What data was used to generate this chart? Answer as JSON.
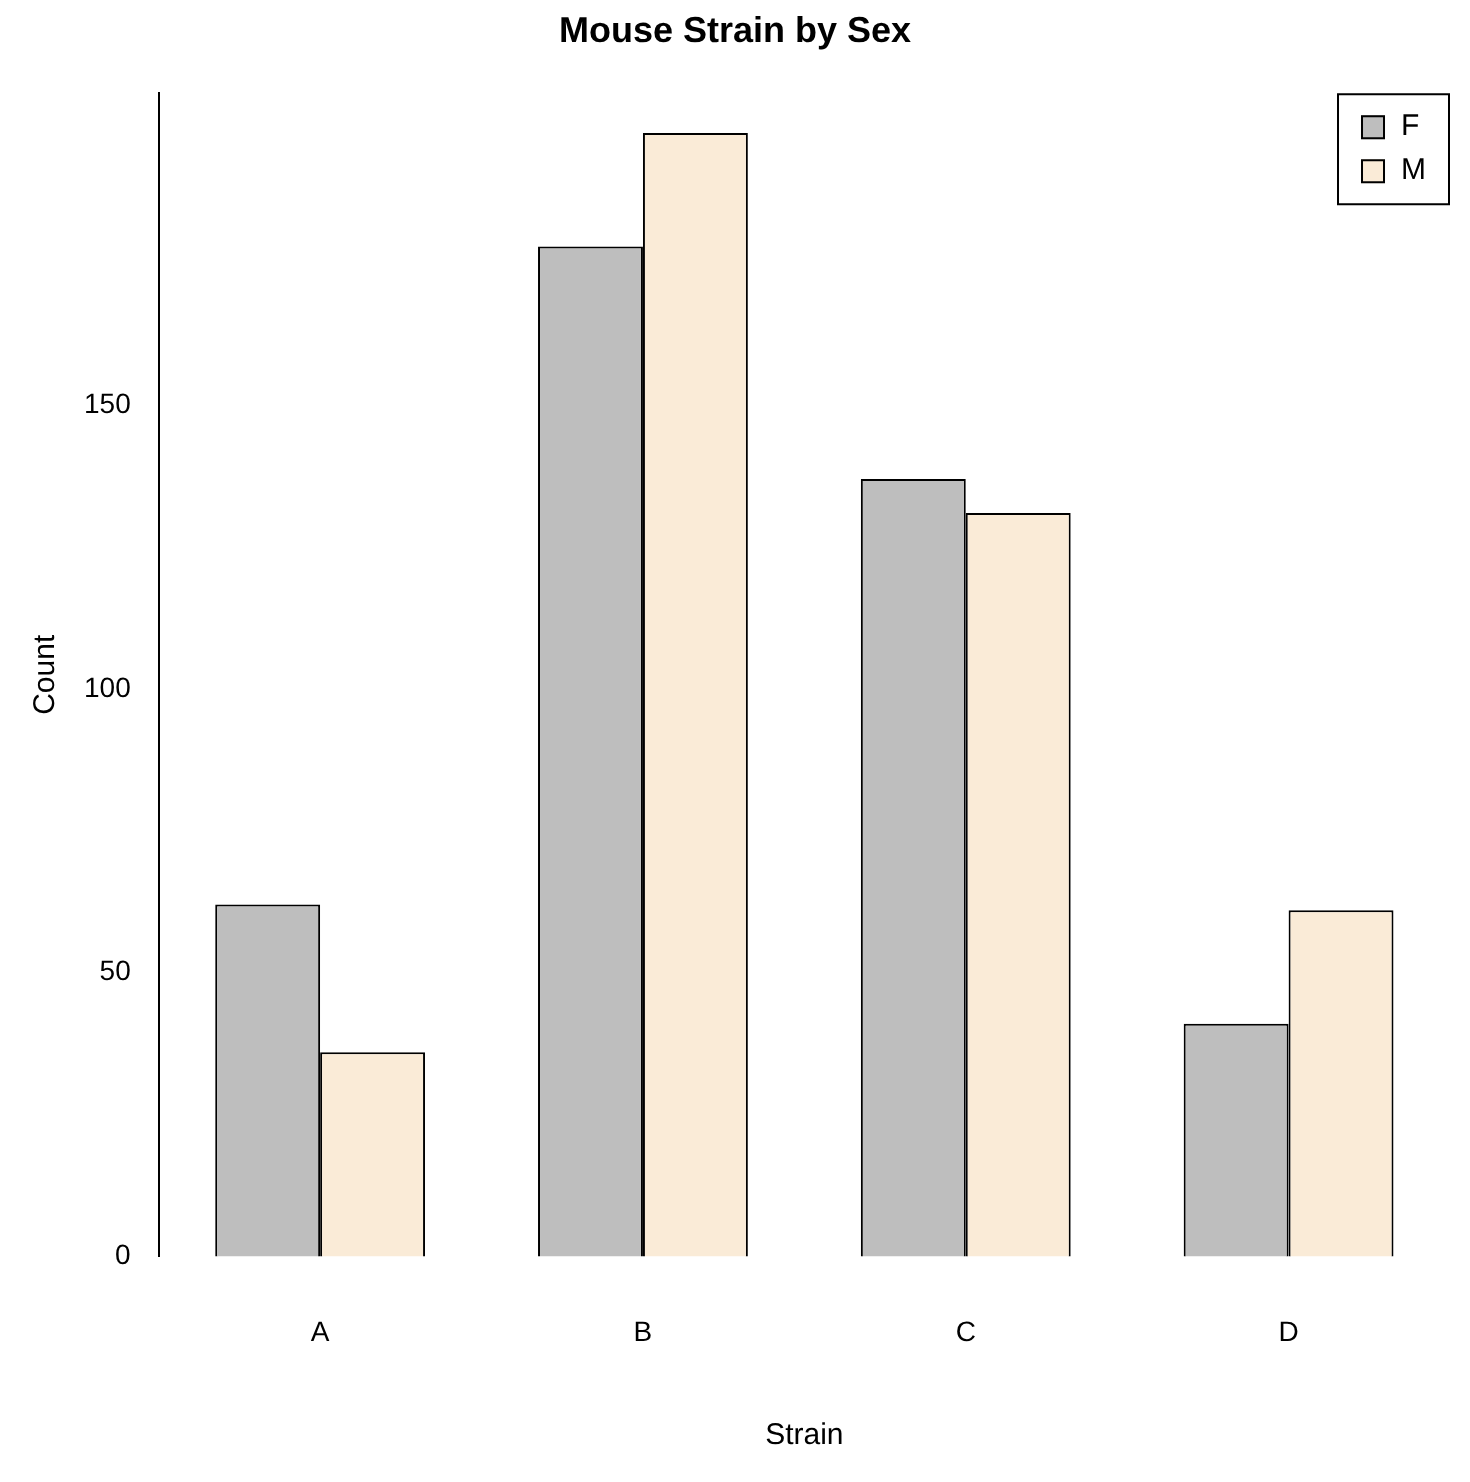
{
  "chart_data": {
    "type": "bar",
    "title": "Mouse Strain by Sex",
    "xlabel": "Strain",
    "ylabel": "Count",
    "categories": [
      "A",
      "B",
      "C",
      "D"
    ],
    "series": [
      {
        "name": "F",
        "color": "#bebebe",
        "values": [
          62,
          178,
          137,
          41
        ]
      },
      {
        "name": "M",
        "color": "#faebd7",
        "values": [
          36,
          198,
          131,
          61
        ]
      }
    ],
    "ylim": [
      0,
      205
    ],
    "yticks": [
      0,
      50,
      100,
      150
    ],
    "grid": false,
    "legend": "top right"
  }
}
